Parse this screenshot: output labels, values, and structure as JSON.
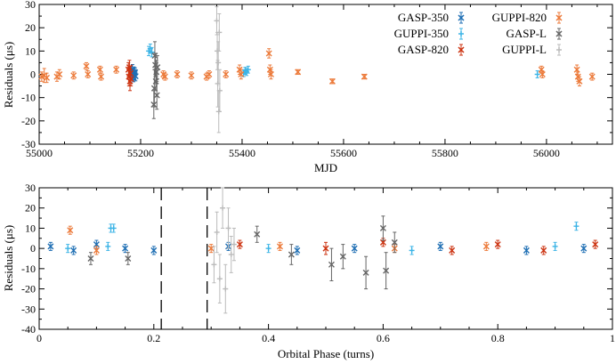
{
  "chart_data": [
    {
      "type": "scatter",
      "title": "",
      "xlabel": "MJD",
      "ylabel": "Residuals (μs)",
      "xlim": [
        55000,
        56130
      ],
      "ylim": [
        -30,
        30
      ],
      "xticks": [
        55000,
        55200,
        55400,
        55600,
        55800,
        56000
      ],
      "yticks": [
        -30,
        -20,
        -10,
        0,
        10,
        20,
        30
      ],
      "legend_position": "top-right",
      "series": [
        {
          "name": "GASP-350",
          "color": "#1f6fb4",
          "marker": "x",
          "points": [
            {
              "x": 55182,
              "y": 1.5,
              "err": 2
            },
            {
              "x": 55183,
              "y": -0.5,
              "err": 2
            },
            {
              "x": 55184,
              "y": 2.2,
              "err": 2
            },
            {
              "x": 55185,
              "y": 0.4,
              "err": 2
            },
            {
              "x": 55186,
              "y": -1.2,
              "err": 2
            },
            {
              "x": 55187,
              "y": 1.0,
              "err": 2
            },
            {
              "x": 55188,
              "y": -0.3,
              "err": 2
            },
            {
              "x": 55189,
              "y": 0.8,
              "err": 2
            },
            {
              "x": 55190,
              "y": -0.8,
              "err": 2
            }
          ]
        },
        {
          "name": "GUPPI-350",
          "color": "#3cb4e6",
          "marker": "+",
          "points": [
            {
              "x": 55216,
              "y": 10,
              "err": 2
            },
            {
              "x": 55219,
              "y": 11,
              "err": 2
            },
            {
              "x": 55222,
              "y": 9.5,
              "err": 2
            },
            {
              "x": 55403,
              "y": 0.5,
              "err": 1.5
            },
            {
              "x": 55406,
              "y": 1.5,
              "err": 1.5
            },
            {
              "x": 55409,
              "y": 1.0,
              "err": 1.5
            },
            {
              "x": 55412,
              "y": 2.0,
              "err": 1.5
            },
            {
              "x": 55982,
              "y": 0,
              "err": 1.5
            }
          ]
        },
        {
          "name": "GASP-820",
          "color": "#cc3311",
          "marker": "x",
          "points": [
            {
              "x": 55176,
              "y": 2,
              "err": 3
            },
            {
              "x": 55177,
              "y": -1,
              "err": 4
            },
            {
              "x": 55178,
              "y": 3,
              "err": 3
            },
            {
              "x": 55179,
              "y": -3,
              "err": 4
            },
            {
              "x": 55180,
              "y": 0.5,
              "err": 3
            },
            {
              "x": 55181,
              "y": -2,
              "err": 3
            }
          ]
        },
        {
          "name": "GUPPI-820",
          "color": "#ec7a3a",
          "marker": "x",
          "points": [
            {
              "x": 55005,
              "y": -1,
              "err": 2
            },
            {
              "x": 55010,
              "y": -0.5,
              "err": 3
            },
            {
              "x": 55015,
              "y": -1.5,
              "err": 2
            },
            {
              "x": 55035,
              "y": -1,
              "err": 2
            },
            {
              "x": 55040,
              "y": 0,
              "err": 2
            },
            {
              "x": 55068,
              "y": -0.5,
              "err": 1.5
            },
            {
              "x": 55093,
              "y": 3.5,
              "err": 1.5
            },
            {
              "x": 55096,
              "y": 0,
              "err": 1.5
            },
            {
              "x": 55120,
              "y": 2,
              "err": 1.5
            },
            {
              "x": 55122,
              "y": -1,
              "err": 1.5
            },
            {
              "x": 55152,
              "y": 2,
              "err": 1.5
            },
            {
              "x": 55245,
              "y": 0,
              "err": 1.5
            },
            {
              "x": 55248,
              "y": -1,
              "err": 1.5
            },
            {
              "x": 55272,
              "y": 0,
              "err": 1.5
            },
            {
              "x": 55300,
              "y": -0.5,
              "err": 1.5
            },
            {
              "x": 55330,
              "y": -1,
              "err": 1.5
            },
            {
              "x": 55335,
              "y": 0,
              "err": 1.5
            },
            {
              "x": 55368,
              "y": 0,
              "err": 1.5
            },
            {
              "x": 55395,
              "y": 2,
              "err": 2
            },
            {
              "x": 55398,
              "y": 0,
              "err": 2
            },
            {
              "x": 55453,
              "y": 9,
              "err": 2
            },
            {
              "x": 55455,
              "y": 2,
              "err": 2
            },
            {
              "x": 55457,
              "y": 0,
              "err": 2
            },
            {
              "x": 55510,
              "y": 1,
              "err": 1
            },
            {
              "x": 55578,
              "y": -3,
              "err": 1
            },
            {
              "x": 55641,
              "y": -1,
              "err": 1
            },
            {
              "x": 55990,
              "y": 2,
              "err": 1.5
            },
            {
              "x": 55992,
              "y": 0,
              "err": 1.5
            },
            {
              "x": 56060,
              "y": 2,
              "err": 2
            },
            {
              "x": 56062,
              "y": -1,
              "err": 2
            },
            {
              "x": 56065,
              "y": -3,
              "err": 2
            },
            {
              "x": 56090,
              "y": -1,
              "err": 1.5
            }
          ]
        },
        {
          "name": "GASP-L",
          "color": "#666666",
          "marker": "x",
          "points": [
            {
              "x": 55226,
              "y": -13,
              "err": 6
            },
            {
              "x": 55227,
              "y": -6,
              "err": 8
            },
            {
              "x": 55228,
              "y": 8,
              "err": 6
            },
            {
              "x": 55229,
              "y": 4,
              "err": 5
            },
            {
              "x": 55230,
              "y": -3,
              "err": 4
            },
            {
              "x": 55231,
              "y": 1,
              "err": 5
            },
            {
              "x": 55232,
              "y": -9,
              "err": 6
            },
            {
              "x": 55233,
              "y": 3,
              "err": 5
            }
          ]
        },
        {
          "name": "GUPPI-L",
          "color": "#bbbbbb",
          "marker": "+",
          "points": [
            {
              "x": 55350,
              "y": 23,
              "err": 6
            },
            {
              "x": 55351,
              "y": 10,
              "err": 8
            },
            {
              "x": 55352,
              "y": -4,
              "err": 10
            },
            {
              "x": 55353,
              "y": 5,
              "err": 9
            },
            {
              "x": 55354,
              "y": -16,
              "err": 9
            },
            {
              "x": 55355,
              "y": 18,
              "err": 8
            },
            {
              "x": 55356,
              "y": -7,
              "err": 9
            }
          ]
        }
      ]
    },
    {
      "type": "scatter",
      "title": "",
      "xlabel": "Orbital Phase (turns)",
      "ylabel": "Residuals (μs)",
      "xlim": [
        0,
        1
      ],
      "ylim": [
        -40,
        30
      ],
      "xticks": [
        0,
        0.2,
        0.4,
        0.6,
        0.8,
        1
      ],
      "yticks": [
        -40,
        -30,
        -20,
        -10,
        0,
        10,
        20,
        30
      ],
      "eclipse_bounds": [
        0.213,
        0.293
      ],
      "series": [
        {
          "name": "GASP-350",
          "color": "#1f6fb4",
          "marker": "x",
          "points": [
            {
              "x": 0.02,
              "y": 1,
              "err": 2
            },
            {
              "x": 0.06,
              "y": -1,
              "err": 2
            },
            {
              "x": 0.1,
              "y": 2,
              "err": 2
            },
            {
              "x": 0.15,
              "y": 0,
              "err": 2
            },
            {
              "x": 0.2,
              "y": -1,
              "err": 2
            },
            {
              "x": 0.33,
              "y": 1,
              "err": 2
            },
            {
              "x": 0.45,
              "y": -1,
              "err": 2
            },
            {
              "x": 0.55,
              "y": 0,
              "err": 2
            },
            {
              "x": 0.7,
              "y": 1,
              "err": 2
            },
            {
              "x": 0.85,
              "y": -1,
              "err": 2
            },
            {
              "x": 0.95,
              "y": 0,
              "err": 2
            }
          ]
        },
        {
          "name": "GUPPI-350",
          "color": "#3cb4e6",
          "marker": "+",
          "points": [
            {
              "x": 0.125,
              "y": 10,
              "err": 2
            },
            {
              "x": 0.13,
              "y": 10,
              "err": 2
            },
            {
              "x": 0.937,
              "y": 11,
              "err": 2
            },
            {
              "x": 0.05,
              "y": 0,
              "err": 2
            },
            {
              "x": 0.12,
              "y": 1,
              "err": 2
            },
            {
              "x": 0.4,
              "y": 0,
              "err": 2
            },
            {
              "x": 0.65,
              "y": -1,
              "err": 2
            },
            {
              "x": 0.9,
              "y": 1,
              "err": 2
            }
          ]
        },
        {
          "name": "GASP-820",
          "color": "#cc3311",
          "marker": "x",
          "points": [
            {
              "x": 0.35,
              "y": 2,
              "err": 2
            },
            {
              "x": 0.5,
              "y": 0,
              "err": 3
            },
            {
              "x": 0.6,
              "y": 3,
              "err": 2
            },
            {
              "x": 0.72,
              "y": -1,
              "err": 2
            },
            {
              "x": 0.8,
              "y": 2,
              "err": 2
            },
            {
              "x": 0.88,
              "y": -1,
              "err": 2
            },
            {
              "x": 0.97,
              "y": 2,
              "err": 2
            }
          ]
        },
        {
          "name": "GUPPI-820",
          "color": "#ec7a3a",
          "marker": "x",
          "points": [
            {
              "x": 0.054,
              "y": 9,
              "err": 2
            },
            {
              "x": 0.1,
              "y": -1,
              "err": 2
            },
            {
              "x": 0.3,
              "y": 0,
              "err": 2
            },
            {
              "x": 0.42,
              "y": 1,
              "err": 2
            },
            {
              "x": 0.62,
              "y": 0,
              "err": 2
            },
            {
              "x": 0.78,
              "y": 1,
              "err": 2
            }
          ]
        },
        {
          "name": "GASP-L",
          "color": "#666666",
          "marker": "x",
          "points": [
            {
              "x": 0.09,
              "y": -5,
              "err": 3
            },
            {
              "x": 0.155,
              "y": -5,
              "err": 3
            },
            {
              "x": 0.51,
              "y": -8,
              "err": 8
            },
            {
              "x": 0.53,
              "y": -4,
              "err": 6
            },
            {
              "x": 0.57,
              "y": -12,
              "err": 8
            },
            {
              "x": 0.6,
              "y": 10,
              "err": 6
            },
            {
              "x": 0.605,
              "y": -11,
              "err": 9
            },
            {
              "x": 0.62,
              "y": 3,
              "err": 5
            },
            {
              "x": 0.38,
              "y": 7,
              "err": 4
            },
            {
              "x": 0.44,
              "y": -3,
              "err": 5
            }
          ]
        },
        {
          "name": "GUPPI-L",
          "color": "#bbbbbb",
          "marker": "+",
          "points": [
            {
              "x": 0.305,
              "y": -8,
              "err": 9
            },
            {
              "x": 0.31,
              "y": 8,
              "err": 10
            },
            {
              "x": 0.315,
              "y": -15,
              "err": 12
            },
            {
              "x": 0.32,
              "y": 20,
              "err": 10
            },
            {
              "x": 0.325,
              "y": -20,
              "err": 12
            },
            {
              "x": 0.33,
              "y": 10,
              "err": 10
            },
            {
              "x": 0.335,
              "y": -3,
              "err": 9
            },
            {
              "x": 0.34,
              "y": 2,
              "err": 8
            }
          ]
        }
      ]
    }
  ]
}
